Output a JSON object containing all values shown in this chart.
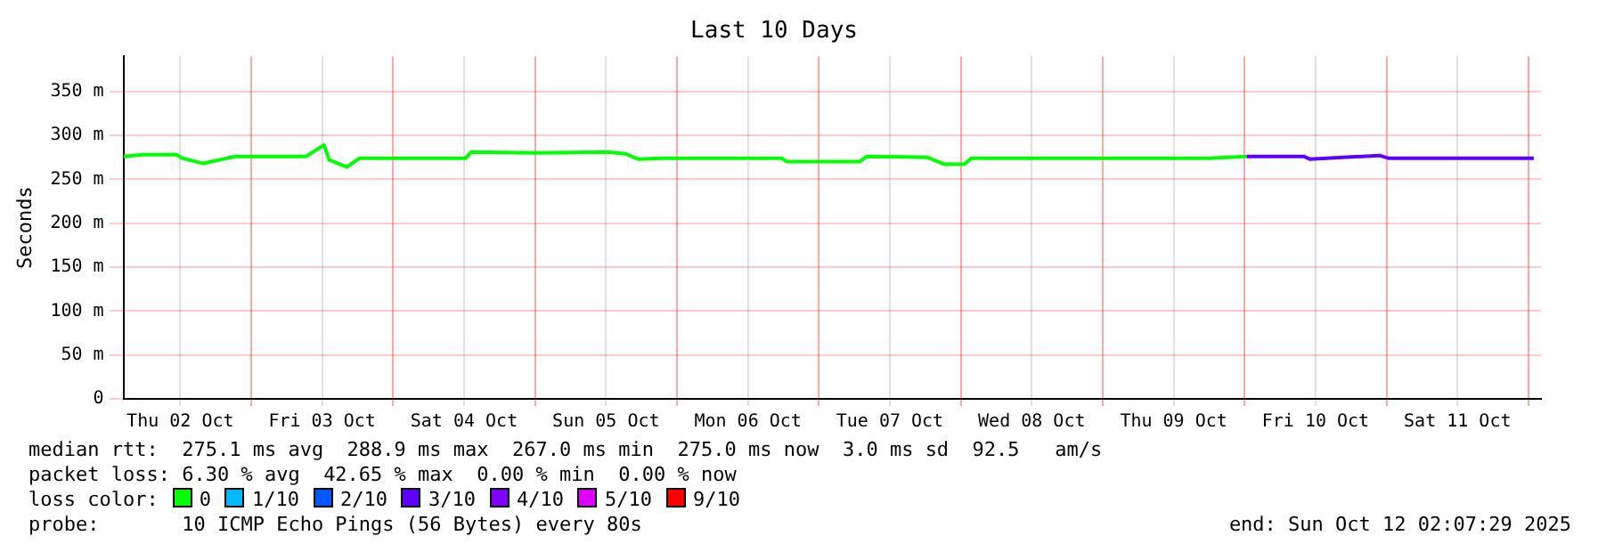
{
  "chart_data": {
    "type": "line",
    "title": "Last 10 Days",
    "ylabel": "Seconds",
    "legend_title": "loss color:",
    "legend": "bottom",
    "grid": true,
    "marker": "none",
    "xlim": [
      "2025-10-02T02:24",
      "2025-10-12T02:07"
    ],
    "ylim": [
      0,
      390
    ],
    "xticks": [
      {
        "value": "2025-10-02T12:00",
        "label": "Thu 02 Oct"
      },
      {
        "value": "2025-10-03T00:00",
        "label": null
      },
      {
        "value": "2025-10-03T12:00",
        "label": "Fri 03 Oct"
      },
      {
        "value": "2025-10-04T00:00",
        "label": null
      },
      {
        "value": "2025-10-04T12:00",
        "label": "Sat 04 Oct"
      },
      {
        "value": "2025-10-05T00:00",
        "label": null
      },
      {
        "value": "2025-10-05T12:00",
        "label": "Sun 05 Oct"
      },
      {
        "value": "2025-10-06T00:00",
        "label": null
      },
      {
        "value": "2025-10-06T12:00",
        "label": "Mon 06 Oct"
      },
      {
        "value": "2025-10-07T00:00",
        "label": null
      },
      {
        "value": "2025-10-07T12:00",
        "label": "Tue 07 Oct"
      },
      {
        "value": "2025-10-08T00:00",
        "label": null
      },
      {
        "value": "2025-10-08T12:00",
        "label": "Wed 08 Oct"
      },
      {
        "value": "2025-10-09T00:00",
        "label": null
      },
      {
        "value": "2025-10-09T12:00",
        "label": "Thu 09 Oct"
      },
      {
        "value": "2025-10-10T00:00",
        "label": null
      },
      {
        "value": "2025-10-10T12:00",
        "label": "Fri 10 Oct"
      },
      {
        "value": "2025-10-11T00:00",
        "label": null
      },
      {
        "value": "2025-10-11T12:00",
        "label": "Sat 11 Oct"
      },
      {
        "value": "2025-10-12T00:00",
        "label": null
      }
    ],
    "yticks": [
      {
        "value": 0,
        "label": "0"
      },
      {
        "value": 50,
        "label": "50 m"
      },
      {
        "value": 100,
        "label": "100 m"
      },
      {
        "value": 150,
        "label": "150 m"
      },
      {
        "value": 200,
        "label": "200 m"
      },
      {
        "value": 250,
        "label": "250 m"
      },
      {
        "value": 300,
        "label": "300 m"
      },
      {
        "value": 350,
        "label": "350 m"
      }
    ],
    "series": [
      {
        "name": "0",
        "color": "#00ff00",
        "x": [
          "2025-10-02T02:24",
          "2025-10-02T05:42",
          "2025-10-02T11:24",
          "2025-10-02T12:18",
          "2025-10-02T15:54",
          "2025-10-02T21:18",
          "2025-10-03T09:18",
          "2025-10-03T12:18",
          "2025-10-03T13:12",
          "2025-10-03T16:12",
          "2025-10-03T18:18",
          "2025-10-04T12:18",
          "2025-10-04T13:12",
          "2025-10-05T00:18",
          "2025-10-05T12:18",
          "2025-10-05T15:18",
          "2025-10-05T17:24",
          "2025-10-05T21:18",
          "2025-10-06T17:42",
          "2025-10-06T18:36",
          "2025-10-07T06:54",
          "2025-10-07T08:06",
          "2025-10-07T18:18",
          "2025-10-07T21:18",
          "2025-10-08T00:36",
          "2025-10-08T01:48",
          "2025-10-09T18:00",
          "2025-10-10T00:18"
        ],
        "values": [
          276,
          278,
          278,
          274,
          268,
          276,
          276,
          289,
          272,
          264,
          274,
          274,
          281,
          280,
          281,
          279,
          273,
          274,
          274,
          270,
          270,
          276,
          275,
          267,
          267,
          274,
          274,
          276
        ]
      },
      {
        "name": "1/10",
        "color": "#00b8ff"
      },
      {
        "name": "2/10",
        "color": "#0059ff"
      },
      {
        "name": "3/10",
        "color": "#5e00ff",
        "x": [
          "2025-10-10T00:18",
          "2025-10-10T10:00",
          "2025-10-10T11:00",
          "2025-10-10T22:48",
          "2025-10-11T00:18",
          "2025-10-12T00:54"
        ],
        "values": [
          276,
          276,
          273,
          277,
          274,
          274
        ]
      },
      {
        "name": "4/10",
        "color": "#7e00ff"
      },
      {
        "name": "5/10",
        "color": "#dd00ff"
      },
      {
        "name": "9/10",
        "color": "#ff0000"
      }
    ],
    "annotations": [
      "median rtt:  275.1 ms avg  288.9 ms max  267.0 ms min  275.0 ms now  3.0 ms sd  92.5   am/s",
      "packet loss: 6.30 % avg  42.65 % max  0.00 % min  0.00 % now",
      "probe:       10 ICMP Echo Pings (56 Bytes) every 80s",
      "end: Sun Oct 12 02:07:29 2025"
    ]
  }
}
